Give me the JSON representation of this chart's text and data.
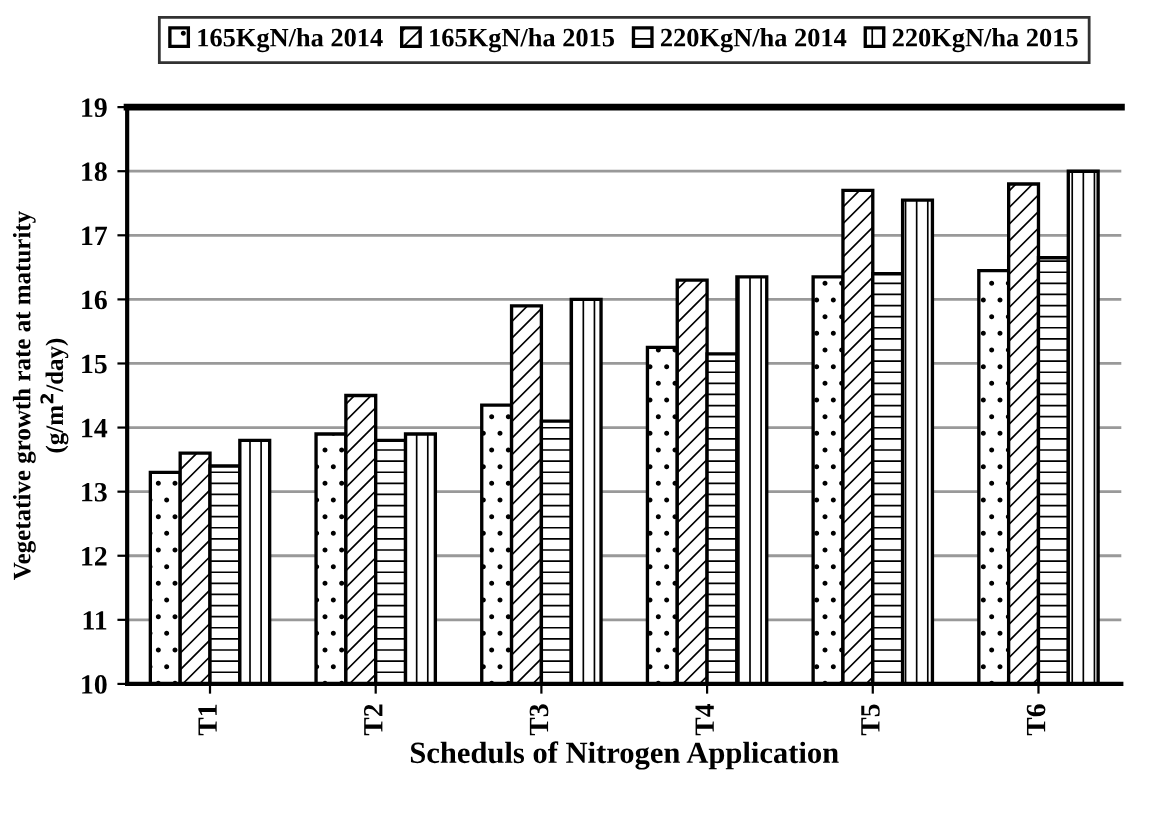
{
  "chart_data": {
    "type": "bar",
    "xlabel": "Scheduls of Nitrogen Application",
    "ylabel": "Vegetative growth rate at maturity\n(g/m$^{2}$/day)",
    "categories": [
      "T1",
      "T2",
      "T3",
      "T4",
      "T5",
      "T6"
    ],
    "series": [
      {
        "name": "165KgN/ha 2014",
        "color": "#000000",
        "values": [
          13.3,
          13.9,
          14.35,
          15.25,
          16.35,
          16.45
        ]
      },
      {
        "name": "165KgN/ha 2015",
        "color": "#000000",
        "values": [
          13.6,
          14.5,
          15.9,
          16.3,
          17.7,
          17.8
        ]
      },
      {
        "name": "220KgN/ha 2014",
        "color": "#000000",
        "values": [
          13.4,
          13.8,
          14.1,
          15.15,
          16.4,
          16.65
        ]
      },
      {
        "name": "220KgN/ha 2015",
        "color": "#000000",
        "values": [
          13.8,
          13.9,
          16.0,
          16.35,
          17.55,
          18.0
        ]
      }
    ],
    "ylim": [
      10,
      19
    ],
    "yticks": [
      10,
      11,
      12,
      13,
      14,
      15,
      16,
      17,
      18,
      19
    ],
    "grid": "y",
    "legend": "top"
  }
}
